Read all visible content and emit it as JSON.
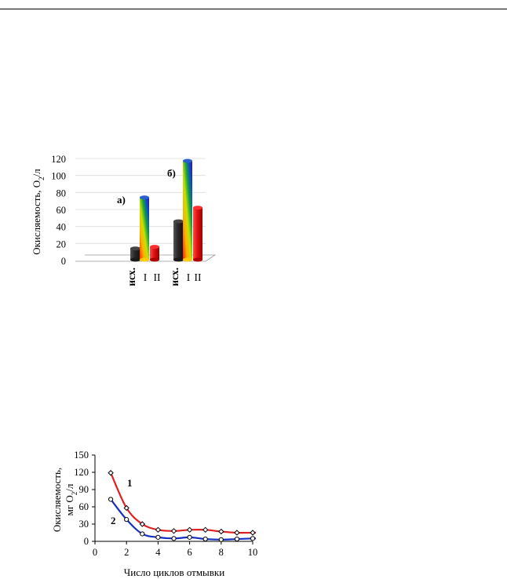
{
  "chart_data": [
    {
      "type": "bar",
      "ylabel": "Окисляемость, O2/л",
      "ylim": [
        0,
        120
      ],
      "yticks": [
        "0",
        "20",
        "40",
        "60",
        "80",
        "100",
        "120"
      ],
      "panels": [
        {
          "label": "а)",
          "categories": [
            "исх.",
            "I",
            "II"
          ],
          "values": [
            15,
            75,
            17
          ]
        },
        {
          "label": "б)",
          "categories": [
            "исх.",
            "I",
            "II"
          ],
          "values": [
            47,
            118,
            63
          ]
        }
      ],
      "colors": {
        "исх.": "#2b2b2b",
        "I": "gradient",
        "II": "#e01010"
      }
    },
    {
      "type": "line",
      "ylabel_line1": "Окисляемость,",
      "ylabel_line2": "мг O2/л",
      "xlabel": "Число циклов отмывки",
      "xlim": [
        0,
        10
      ],
      "ylim": [
        0,
        150
      ],
      "xticks": [
        "0",
        "2",
        "4",
        "6",
        "8",
        "10"
      ],
      "yticks": [
        "0",
        "30",
        "60",
        "90",
        "120",
        "150"
      ],
      "series": [
        {
          "name": "1",
          "color": "#e02020",
          "x": [
            1,
            2,
            3,
            4,
            5,
            6,
            7,
            8,
            9,
            10
          ],
          "y": [
            119,
            58,
            30,
            20,
            18,
            20,
            20,
            17,
            15,
            15
          ]
        },
        {
          "name": "2",
          "color": "#1530c0",
          "x": [
            1,
            2,
            3,
            4,
            5,
            6,
            7,
            8,
            9,
            10
          ],
          "y": [
            73,
            38,
            13,
            7,
            5,
            7,
            4,
            3,
            4,
            5
          ]
        }
      ]
    }
  ]
}
